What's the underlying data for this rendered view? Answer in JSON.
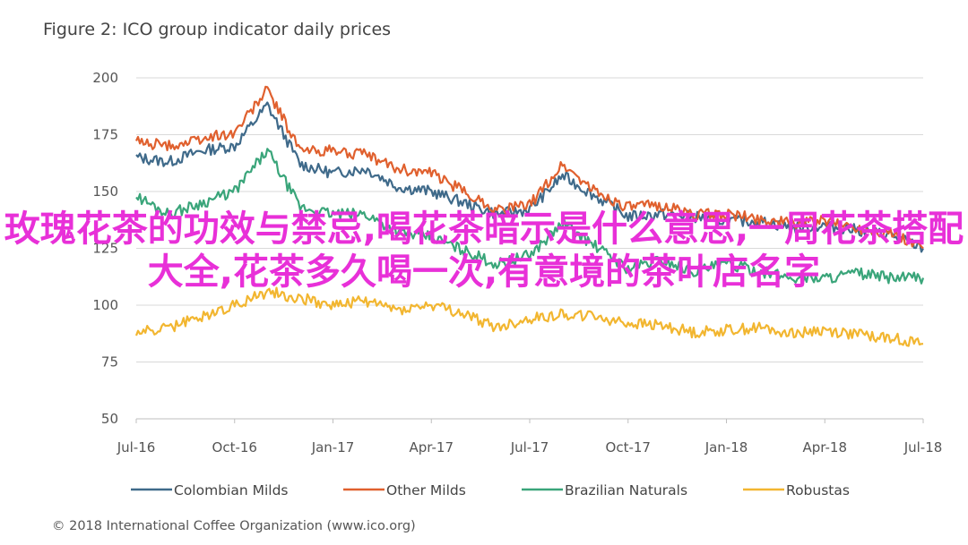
{
  "title": "Figure 2: ICO group indicator daily prices",
  "overlay_text": "玫瑰花茶的功效与禁忌,喝花茶暗示是什么意思,一周花茶搭配大全,花茶多久喝一次,有意境的茶叶店名字",
  "overlay_color": "#e830d8",
  "copyright": "© 2018 International Coffee Organization (www.ico.org)",
  "chart_data": {
    "type": "line",
    "title": "Figure 2: ICO group indicator daily prices",
    "xlabel": "",
    "ylabel": "",
    "ylim": [
      50,
      200
    ],
    "yticks": [
      50,
      75,
      100,
      125,
      150,
      175,
      200
    ],
    "xticks": [
      "Jul-16",
      "Oct-16",
      "Jan-17",
      "Apr-17",
      "Jul-17",
      "Oct-17",
      "Jan-18",
      "Apr-18",
      "Jul-18"
    ],
    "x": [
      "Jul-16",
      "Aug-16",
      "Sep-16",
      "Oct-16",
      "Nov-16",
      "Dec-16",
      "Jan-17",
      "Feb-17",
      "Mar-17",
      "Apr-17",
      "May-17",
      "Jun-17",
      "Jul-17",
      "Aug-17",
      "Sep-17",
      "Oct-17",
      "Nov-17",
      "Dec-17",
      "Jan-18",
      "Feb-18",
      "Mar-18",
      "Apr-18",
      "May-18",
      "Jun-18",
      "Jul-18"
    ],
    "grid": true,
    "legend_position": "bottom",
    "series": [
      {
        "name": "Colombian Milds",
        "color": "#3f6a8a",
        "values": [
          165,
          163,
          168,
          170,
          188,
          162,
          158,
          160,
          152,
          150,
          145,
          140,
          142,
          157,
          148,
          139,
          140,
          139,
          137,
          137,
          134,
          135,
          133,
          131,
          125
        ]
      },
      {
        "name": "Other Milds",
        "color": "#e0602e",
        "values": [
          172,
          170,
          173,
          176,
          195,
          168,
          168,
          166,
          160,
          158,
          150,
          142,
          144,
          162,
          150,
          143,
          144,
          140,
          140,
          138,
          136,
          137,
          134,
          132,
          125
        ]
      },
      {
        "name": "Brazilian Naturals",
        "color": "#3aa57a",
        "values": [
          148,
          140,
          145,
          150,
          168,
          143,
          140,
          140,
          132,
          130,
          124,
          118,
          122,
          136,
          126,
          116,
          120,
          115,
          118,
          115,
          112,
          112,
          114,
          112,
          112
        ]
      },
      {
        "name": "Robustas",
        "color": "#f2b630",
        "values": [
          88,
          90,
          95,
          100,
          106,
          103,
          100,
          102,
          98,
          100,
          96,
          90,
          94,
          96,
          95,
          92,
          91,
          88,
          89,
          90,
          88,
          89,
          87,
          86,
          83
        ]
      }
    ]
  }
}
